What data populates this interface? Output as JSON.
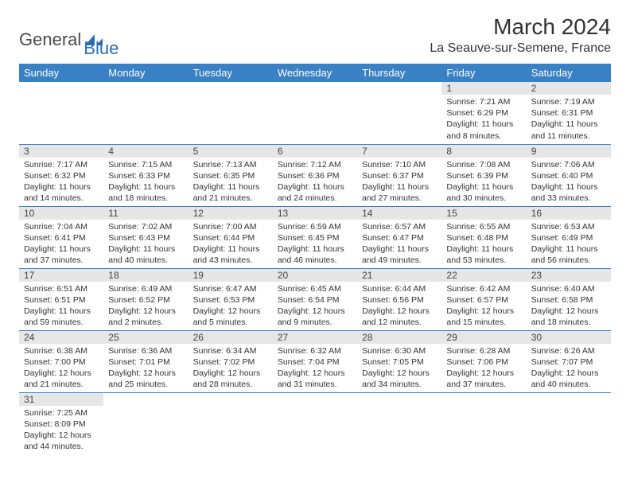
{
  "brand": {
    "part1": "General",
    "part2": "Blue"
  },
  "title": "March 2024",
  "location": "La Seauve-sur-Semene, France",
  "colors": {
    "header_bg": "#3a80c4",
    "header_text": "#ffffff",
    "daynum_bg": "#e6e6e6",
    "row_border": "#3a80c4",
    "logo_blue": "#2a6db5",
    "logo_gray": "#4a4a4a"
  },
  "typography": {
    "title_fontsize": 28,
    "location_fontsize": 16,
    "weekday_fontsize": 13,
    "daynum_fontsize": 12,
    "cell_fontsize": 10.5
  },
  "weekdays": [
    "Sunday",
    "Monday",
    "Tuesday",
    "Wednesday",
    "Thursday",
    "Friday",
    "Saturday"
  ],
  "weeks": [
    [
      null,
      null,
      null,
      null,
      null,
      {
        "n": "1",
        "sunrise": "7:21 AM",
        "sunset": "6:29 PM",
        "daylight": "11 hours and 8 minutes."
      },
      {
        "n": "2",
        "sunrise": "7:19 AM",
        "sunset": "6:31 PM",
        "daylight": "11 hours and 11 minutes."
      }
    ],
    [
      {
        "n": "3",
        "sunrise": "7:17 AM",
        "sunset": "6:32 PM",
        "daylight": "11 hours and 14 minutes."
      },
      {
        "n": "4",
        "sunrise": "7:15 AM",
        "sunset": "6:33 PM",
        "daylight": "11 hours and 18 minutes."
      },
      {
        "n": "5",
        "sunrise": "7:13 AM",
        "sunset": "6:35 PM",
        "daylight": "11 hours and 21 minutes."
      },
      {
        "n": "6",
        "sunrise": "7:12 AM",
        "sunset": "6:36 PM",
        "daylight": "11 hours and 24 minutes."
      },
      {
        "n": "7",
        "sunrise": "7:10 AM",
        "sunset": "6:37 PM",
        "daylight": "11 hours and 27 minutes."
      },
      {
        "n": "8",
        "sunrise": "7:08 AM",
        "sunset": "6:39 PM",
        "daylight": "11 hours and 30 minutes."
      },
      {
        "n": "9",
        "sunrise": "7:06 AM",
        "sunset": "6:40 PM",
        "daylight": "11 hours and 33 minutes."
      }
    ],
    [
      {
        "n": "10",
        "sunrise": "7:04 AM",
        "sunset": "6:41 PM",
        "daylight": "11 hours and 37 minutes."
      },
      {
        "n": "11",
        "sunrise": "7:02 AM",
        "sunset": "6:43 PM",
        "daylight": "11 hours and 40 minutes."
      },
      {
        "n": "12",
        "sunrise": "7:00 AM",
        "sunset": "6:44 PM",
        "daylight": "11 hours and 43 minutes."
      },
      {
        "n": "13",
        "sunrise": "6:59 AM",
        "sunset": "6:45 PM",
        "daylight": "11 hours and 46 minutes."
      },
      {
        "n": "14",
        "sunrise": "6:57 AM",
        "sunset": "6:47 PM",
        "daylight": "11 hours and 49 minutes."
      },
      {
        "n": "15",
        "sunrise": "6:55 AM",
        "sunset": "6:48 PM",
        "daylight": "11 hours and 53 minutes."
      },
      {
        "n": "16",
        "sunrise": "6:53 AM",
        "sunset": "6:49 PM",
        "daylight": "11 hours and 56 minutes."
      }
    ],
    [
      {
        "n": "17",
        "sunrise": "6:51 AM",
        "sunset": "6:51 PM",
        "daylight": "11 hours and 59 minutes."
      },
      {
        "n": "18",
        "sunrise": "6:49 AM",
        "sunset": "6:52 PM",
        "daylight": "12 hours and 2 minutes."
      },
      {
        "n": "19",
        "sunrise": "6:47 AM",
        "sunset": "6:53 PM",
        "daylight": "12 hours and 5 minutes."
      },
      {
        "n": "20",
        "sunrise": "6:45 AM",
        "sunset": "6:54 PM",
        "daylight": "12 hours and 9 minutes."
      },
      {
        "n": "21",
        "sunrise": "6:44 AM",
        "sunset": "6:56 PM",
        "daylight": "12 hours and 12 minutes."
      },
      {
        "n": "22",
        "sunrise": "6:42 AM",
        "sunset": "6:57 PM",
        "daylight": "12 hours and 15 minutes."
      },
      {
        "n": "23",
        "sunrise": "6:40 AM",
        "sunset": "6:58 PM",
        "daylight": "12 hours and 18 minutes."
      }
    ],
    [
      {
        "n": "24",
        "sunrise": "6:38 AM",
        "sunset": "7:00 PM",
        "daylight": "12 hours and 21 minutes."
      },
      {
        "n": "25",
        "sunrise": "6:36 AM",
        "sunset": "7:01 PM",
        "daylight": "12 hours and 25 minutes."
      },
      {
        "n": "26",
        "sunrise": "6:34 AM",
        "sunset": "7:02 PM",
        "daylight": "12 hours and 28 minutes."
      },
      {
        "n": "27",
        "sunrise": "6:32 AM",
        "sunset": "7:04 PM",
        "daylight": "12 hours and 31 minutes."
      },
      {
        "n": "28",
        "sunrise": "6:30 AM",
        "sunset": "7:05 PM",
        "daylight": "12 hours and 34 minutes."
      },
      {
        "n": "29",
        "sunrise": "6:28 AM",
        "sunset": "7:06 PM",
        "daylight": "12 hours and 37 minutes."
      },
      {
        "n": "30",
        "sunrise": "6:26 AM",
        "sunset": "7:07 PM",
        "daylight": "12 hours and 40 minutes."
      }
    ],
    [
      {
        "n": "31",
        "sunrise": "7:25 AM",
        "sunset": "8:09 PM",
        "daylight": "12 hours and 44 minutes."
      },
      null,
      null,
      null,
      null,
      null,
      null
    ]
  ],
  "labels": {
    "sunrise": "Sunrise:",
    "sunset": "Sunset:",
    "daylight": "Daylight:"
  }
}
